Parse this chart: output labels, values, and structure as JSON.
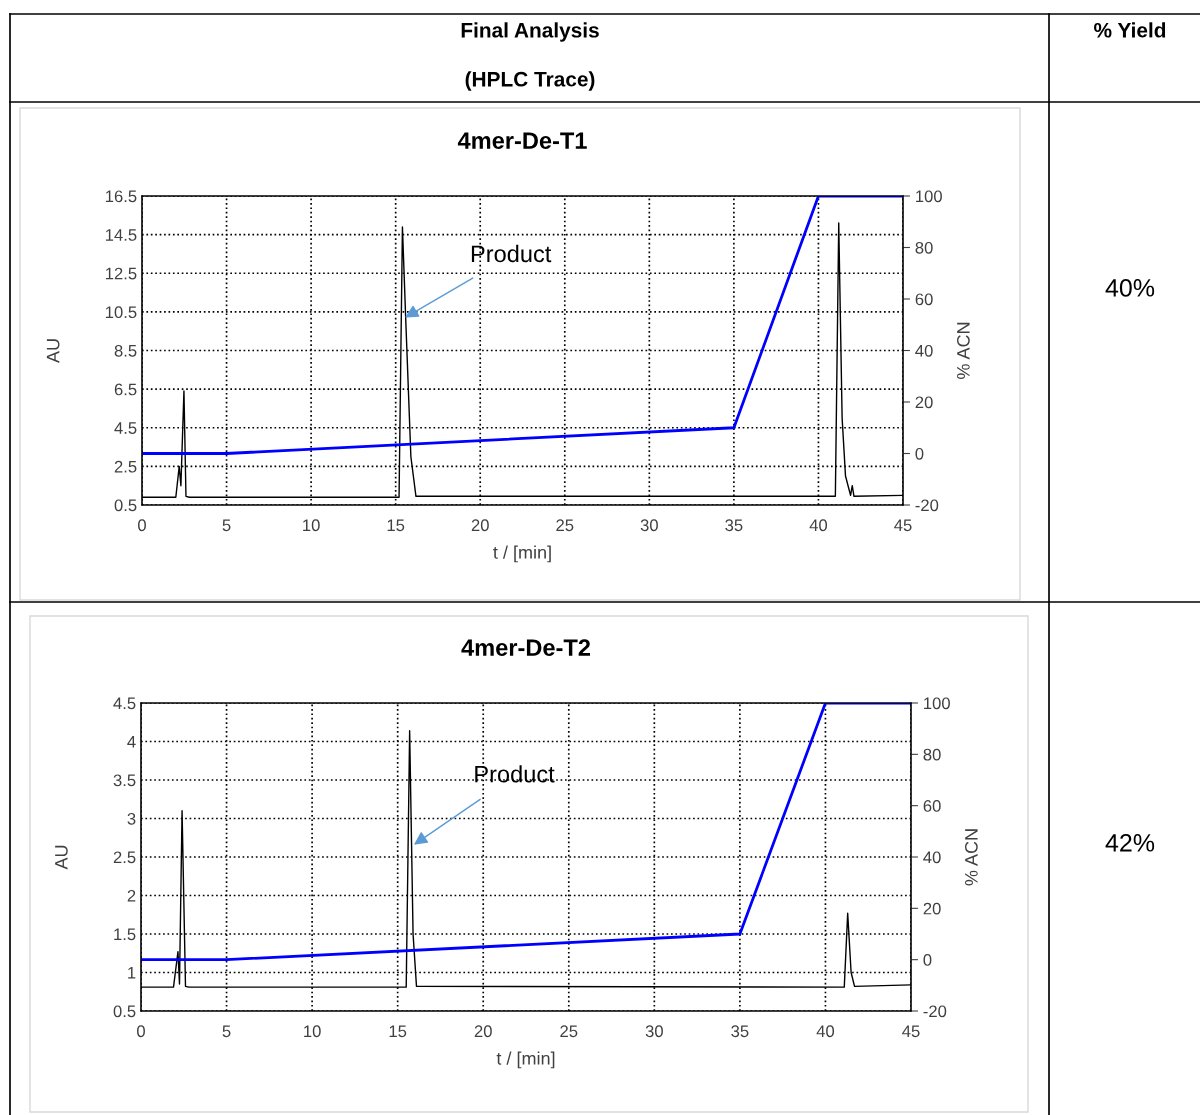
{
  "chart_data": [
    {
      "type": "line",
      "title": "4mer-De-T1",
      "xlabel": "t / [min]",
      "ylabel": "AU",
      "y2label": "% ACN",
      "xlim": [
        0,
        45
      ],
      "xticks": [
        0,
        5,
        10,
        15,
        20,
        25,
        30,
        35,
        40,
        45
      ],
      "ylim": [
        0.5,
        16.5
      ],
      "yticks": [
        0.5,
        2.5,
        4.5,
        6.5,
        8.5,
        10.5,
        12.5,
        14.5,
        16.5
      ],
      "y2lim": [
        -20,
        100
      ],
      "y2ticks": [
        -20,
        0,
        20,
        40,
        60,
        80,
        100
      ],
      "grid": true,
      "legend": false,
      "marker": "none",
      "series": [
        {
          "color": "#000000",
          "x": [
            0,
            2.0,
            2.2,
            2.3,
            2.48,
            2.6,
            2.8,
            15.2,
            15.4,
            15.6,
            15.9,
            16.2,
            41.0,
            41.2,
            41.4,
            41.6,
            41.9,
            42.0,
            42.1,
            45
          ],
          "values": [
            0.9,
            0.9,
            2.5,
            1.5,
            6.4,
            0.95,
            0.9,
            0.9,
            14.9,
            10.0,
            3.0,
            0.95,
            0.95,
            15.1,
            5.0,
            2.0,
            1.0,
            1.5,
            0.95,
            1.0
          ]
        },
        {
          "color": "#0000ff",
          "axis": "y2",
          "x": [
            0,
            5,
            35,
            40,
            45
          ],
          "values": [
            0,
            0,
            10,
            100,
            100
          ]
        }
      ],
      "annotations": [
        {
          "text": "Product",
          "x": 15.55,
          "y": 10.2
        },
        "Final Analysis",
        "(HPLC Trace)",
        "% Yield",
        "40%"
      ]
    },
    {
      "type": "line",
      "title": "4mer-De-T2",
      "xlabel": "t / [min]",
      "ylabel": "AU",
      "y2label": "% ACN",
      "xlim": [
        0,
        45
      ],
      "xticks": [
        0,
        5,
        10,
        15,
        20,
        25,
        30,
        35,
        40,
        45
      ],
      "ylim": [
        0.5,
        4.5
      ],
      "yticks": [
        0.5,
        1,
        1.5,
        2,
        2.5,
        3,
        3.5,
        4,
        4.5
      ],
      "y2lim": [
        -20,
        100
      ],
      "y2ticks": [
        -20,
        0,
        20,
        40,
        60,
        80,
        100
      ],
      "grid": true,
      "legend": false,
      "marker": "none",
      "series": [
        {
          "color": "#000000",
          "x": [
            0,
            1.9,
            2.16,
            2.25,
            2.4,
            2.6,
            2.8,
            15.5,
            15.7,
            15.9,
            16.1,
            41.1,
            41.3,
            41.5,
            41.7,
            45
          ],
          "values": [
            0.81,
            0.81,
            1.27,
            0.85,
            3.1,
            0.82,
            0.81,
            0.81,
            4.14,
            1.5,
            0.82,
            0.81,
            1.77,
            1.0,
            0.82,
            0.84
          ]
        },
        {
          "color": "#0000ff",
          "axis": "y2",
          "x": [
            0,
            5,
            35,
            40,
            45
          ],
          "values": [
            0,
            0,
            10,
            100,
            100
          ]
        }
      ],
      "annotations": [
        {
          "text": "Product",
          "x": 15.95,
          "y": 2.66
        },
        "42%"
      ]
    }
  ]
}
